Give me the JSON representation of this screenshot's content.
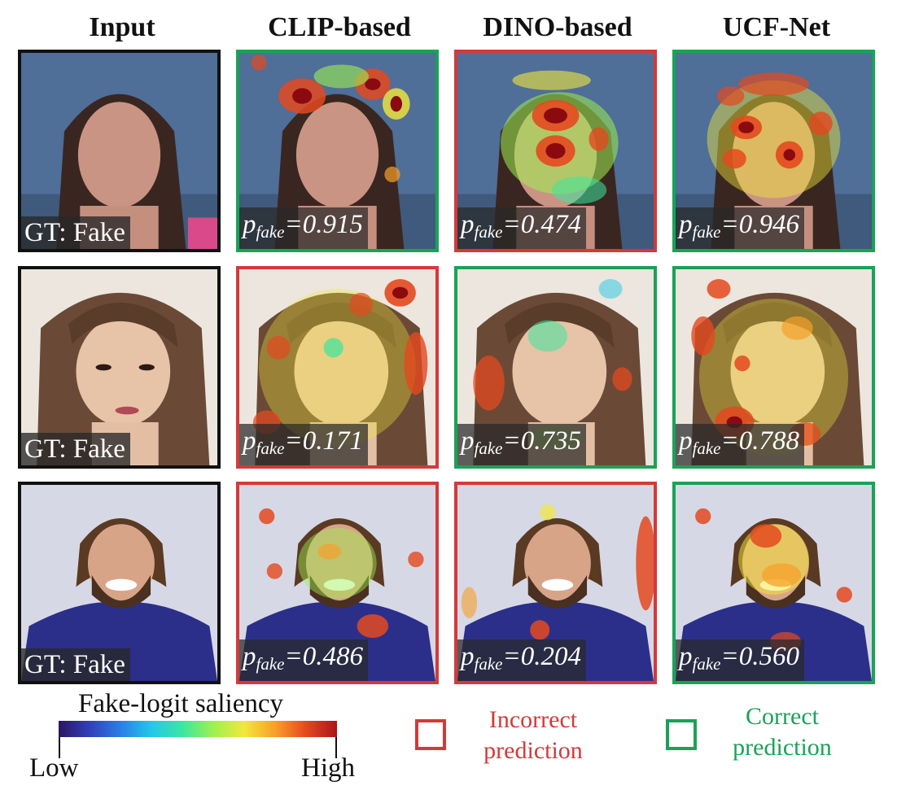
{
  "columns": [
    "Input",
    "CLIP-based",
    "DINO-based",
    "UCF-Net"
  ],
  "rows": [
    {
      "input_label": "GT: Fake",
      "results": [
        {
          "model": "CLIP-based",
          "prob_prefix": "p",
          "prob_sub": "fake",
          "prob_value": "=0.915",
          "prediction": "correct"
        },
        {
          "model": "DINO-based",
          "prob_prefix": "p",
          "prob_sub": "fake",
          "prob_value": "=0.474",
          "prediction": "incorrect"
        },
        {
          "model": "UCF-Net",
          "prob_prefix": "p",
          "prob_sub": "fake",
          "prob_value": "=0.946",
          "prediction": "correct"
        }
      ]
    },
    {
      "input_label": "GT: Fake",
      "results": [
        {
          "model": "CLIP-based",
          "prob_prefix": "p",
          "prob_sub": "fake",
          "prob_value": "=0.171",
          "prediction": "incorrect"
        },
        {
          "model": "DINO-based",
          "prob_prefix": "p",
          "prob_sub": "fake",
          "prob_value": "=0.735",
          "prediction": "correct"
        },
        {
          "model": "UCF-Net",
          "prob_prefix": "p",
          "prob_sub": "fake",
          "prob_value": "=0.788",
          "prediction": "correct"
        }
      ]
    },
    {
      "input_label": "GT: Fake",
      "results": [
        {
          "model": "CLIP-based",
          "prob_prefix": "p",
          "prob_sub": "fake",
          "prob_value": "=0.486",
          "prediction": "incorrect"
        },
        {
          "model": "DINO-based",
          "prob_prefix": "p",
          "prob_sub": "fake",
          "prob_value": "=0.204",
          "prediction": "incorrect"
        },
        {
          "model": "UCF-Net",
          "prob_prefix": "p",
          "prob_sub": "fake",
          "prob_value": "=0.560",
          "prediction": "correct"
        }
      ]
    }
  ],
  "colorbar": {
    "title": "Fake-logit saliency",
    "low": "Low",
    "high": "High"
  },
  "legend": {
    "incorrect": {
      "line1": "Incorrect",
      "line2": "prediction",
      "color": "#d23a3a"
    },
    "correct": {
      "line1": "Correct",
      "line2": "prediction",
      "color": "#1aa257"
    }
  },
  "colors": {
    "input_border": "#111111",
    "incorrect": "#d23a3a",
    "correct": "#1aa257"
  }
}
